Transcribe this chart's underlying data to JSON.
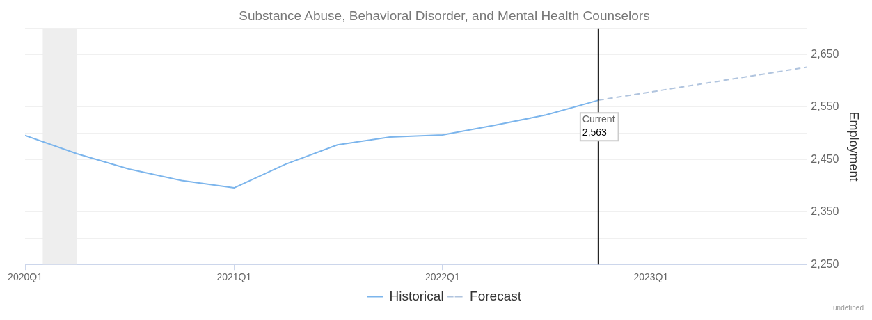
{
  "chart_data": {
    "type": "line",
    "title": "Substance Abuse, Behavioral Disorder, and Mental Health Counselors",
    "ylabel": "Employment",
    "series": [
      {
        "name": "Historical",
        "color": "#7cb5ec",
        "line_style": "solid",
        "x": [
          "2020-01-01",
          "2020-04-01",
          "2020-07-01",
          "2020-10-01",
          "2021-01-01",
          "2021-04-01",
          "2021-07-01",
          "2021-10-01",
          "2022-01-01",
          "2022-04-01",
          "2022-07-01",
          "2022-10-01"
        ],
        "values": [
          2496,
          2461,
          2432,
          2410,
          2396,
          2441,
          2478,
          2493,
          2497,
          2515,
          2535,
          2563
        ]
      },
      {
        "name": "Forecast",
        "color": "#b0c4de",
        "line_style": "dashed",
        "x": [
          "2022-10-01",
          "2023-10-01"
        ],
        "values": [
          2563,
          2626
        ]
      }
    ],
    "xlim": [
      "2020-01-01",
      "2023-10-01"
    ],
    "xticks": [
      {
        "value": "2020-01-01",
        "label": "2020Q1"
      },
      {
        "value": "2021-01-01",
        "label": "2021Q1"
      },
      {
        "value": "2022-01-01",
        "label": "2022Q1"
      },
      {
        "value": "2023-01-01",
        "label": "2023Q1"
      }
    ],
    "ylim": [
      2250,
      2700
    ],
    "yticks": [
      {
        "value": 2250,
        "label": "2,250"
      },
      {
        "value": 2300,
        "label": null
      },
      {
        "value": 2350,
        "label": "2,350"
      },
      {
        "value": 2400,
        "label": null
      },
      {
        "value": 2450,
        "label": "2,450"
      },
      {
        "value": 2500,
        "label": null
      },
      {
        "value": 2550,
        "label": "2,550"
      },
      {
        "value": 2600,
        "label": null
      },
      {
        "value": 2650,
        "label": "2,650"
      },
      {
        "value": 2700,
        "label": null
      }
    ],
    "bands": [
      {
        "axis": "x",
        "from": "2020-02-01",
        "to": "2020-04-01",
        "color": "#eeeeee"
      }
    ],
    "ref_lines": [
      {
        "axis": "x",
        "value": "2022-10-01",
        "label": "Current",
        "color": "#000000"
      }
    ],
    "annotations": [
      {
        "text": "2,563",
        "x": "2022-10-01",
        "y": 2563
      },
      "undefined"
    ],
    "grid": "y",
    "legend": "bottom",
    "marker": "none"
  }
}
